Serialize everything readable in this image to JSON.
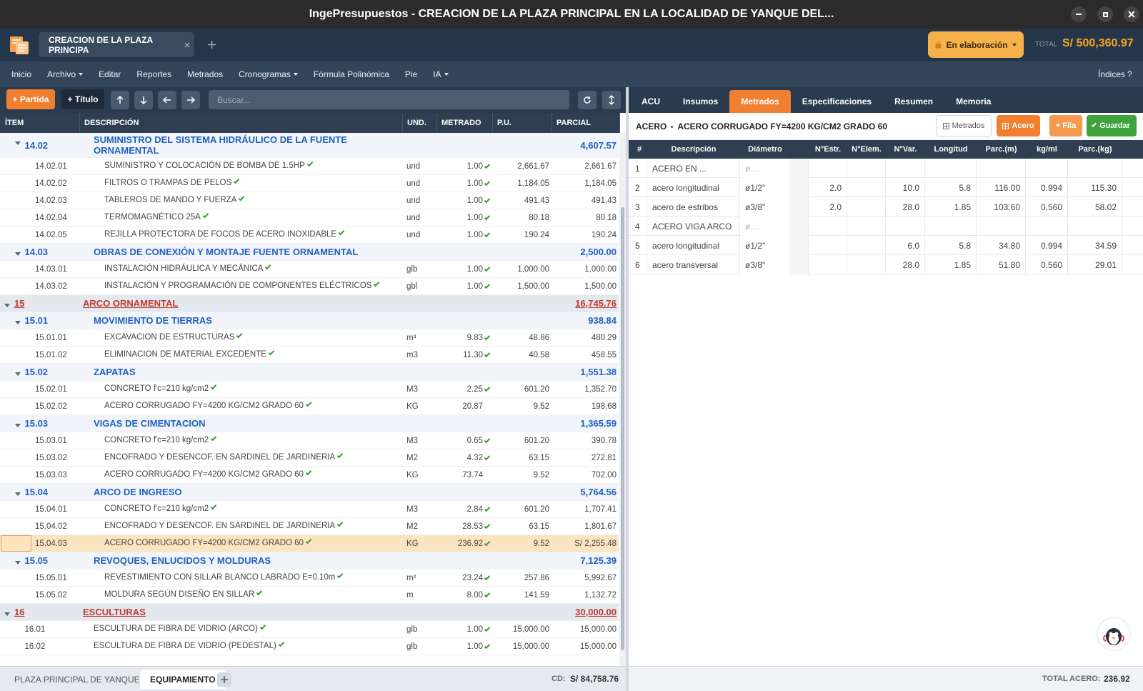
{
  "window_title": "IngePresupuestos  -  CREACION DE LA PLAZA PRINCIPAL EN LA LOCALIDAD DE YANQUE DEL...",
  "project_tab": "CREACION DE LA PLAZA PRINCIPA",
  "status": "En elaboración",
  "total_label": "TOTAL",
  "total_value": "S/ 500,360.97",
  "menu": [
    {
      "label": "Inicio",
      "dropdown": false
    },
    {
      "label": "Archivo",
      "dropdown": true
    },
    {
      "label": "Editar",
      "dropdown": false
    },
    {
      "label": "Reportes",
      "dropdown": false
    },
    {
      "label": "Metrados",
      "dropdown": false
    },
    {
      "label": "Cronogramas",
      "dropdown": true
    },
    {
      "label": "Fórmula Polinómica",
      "dropdown": false
    },
    {
      "label": "Pie",
      "dropdown": false
    },
    {
      "label": "IA",
      "dropdown": true
    }
  ],
  "menu_right": [
    "Índices",
    "?"
  ],
  "toolbar": {
    "add_partida": "+ Partida",
    "add_titulo": "+ Título",
    "search_placeholder": "Buscar..."
  },
  "budget_table": {
    "columns": [
      "ÍTEM",
      "DESCRIPCIÓN",
      "UND.",
      "METRADO",
      "P.U.",
      "PARCIAL"
    ],
    "rows": [
      {
        "item": "14.02",
        "desc": "SUMINISTRO DEL SISTEMA HIDRÁULICO DE LA FUENTE ORNAMENTAL",
        "und": null,
        "metrado": null,
        "pu": null,
        "parcial": "4,607.57"
      },
      {
        "item": "14.02.01",
        "desc": "SUMINISTRO Y COLOCACIÓN DE BOMBA DE 1.5HP",
        "und": "und",
        "metrado": "1.00",
        "metrado_ok": true,
        "pu": "2,661.67",
        "parcial": "2,661.67"
      },
      {
        "item": "14.02.02",
        "desc": "FILTROS O TRAMPAS DE PELOS",
        "und": "und",
        "metrado": "1.00",
        "metrado_ok": true,
        "pu": "1,184.05",
        "parcial": "1,184.05"
      },
      {
        "item": "14.02.03",
        "desc": "TABLEROS DE MANDO Y FUERZA",
        "und": "und",
        "metrado": "1.00",
        "metrado_ok": true,
        "pu": "491.43",
        "parcial": "491.43"
      },
      {
        "item": "14.02.04",
        "desc": "TERMOMAGNÉTICO 25A",
        "und": "und",
        "metrado": "1.00",
        "metrado_ok": true,
        "pu": "80.18",
        "parcial": "80.18"
      },
      {
        "item": "14.02.05",
        "desc": "REJILLA PROTECTORA DE FOCOS DE ACERO INOXIDABLE",
        "und": "und",
        "metrado": "1.00",
        "metrado_ok": true,
        "pu": "190.24",
        "parcial": "190.24"
      },
      {
        "item": "14.03",
        "desc": "OBRAS DE CONEXIÓN Y MONTAJE FUENTE ORNAMENTAL",
        "und": null,
        "metrado": null,
        "pu": null,
        "parcial": "2,500.00"
      },
      {
        "item": "14.03.01",
        "desc": "INSTALACIÓN HIDRÁULICA Y MECÁNICA",
        "und": "glb",
        "metrado": "1.00",
        "metrado_ok": true,
        "pu": "1,000.00",
        "parcial": "1,000.00"
      },
      {
        "item": "14.03.02",
        "desc": "INSTALACIÓN Y PROGRAMACIÓN DE COMPONENTES ELÉCTRICOS",
        "und": "gbl",
        "metrado": "1.00",
        "metrado_ok": true,
        "pu": "1,500.00",
        "parcial": "1,500.00"
      },
      {
        "item": "15",
        "desc": "ARCO ORNAMENTAL",
        "und": null,
        "metrado": null,
        "pu": null,
        "parcial": "16,745.76"
      },
      {
        "item": "15.01",
        "desc": "MOVIMIENTO  DE TIERRAS",
        "und": null,
        "metrado": null,
        "pu": null,
        "parcial": "938.84"
      },
      {
        "item": "15.01.01",
        "desc": "EXCAVACION DE ESTRUCTURAS",
        "und": "m³",
        "metrado": "9.83",
        "metrado_ok": true,
        "pu": "48.86",
        "parcial": "480.29"
      },
      {
        "item": "15.01.02",
        "desc": "ELIMINACION DE MATERIAL EXCEDENTE",
        "und": "m3",
        "metrado": "11.30",
        "metrado_ok": true,
        "pu": "40.58",
        "parcial": "458.55"
      },
      {
        "item": "15.02",
        "desc": "ZAPATAS",
        "und": null,
        "metrado": null,
        "pu": null,
        "parcial": "1,551.38"
      },
      {
        "item": "15.02.01",
        "desc": "CONCRETO f'c=210 kg/cm2",
        "und": "M3",
        "metrado": "2.25",
        "metrado_ok": true,
        "pu": "601.20",
        "parcial": "1,352.70"
      },
      {
        "item": "15.02.02",
        "desc": "ACERO CORRUGADO FY=4200 KG/CM2 GRADO 60",
        "und": "KG",
        "metrado": "20.87",
        "metrado_ok": false,
        "pu": "9.52",
        "parcial": "198.68"
      },
      {
        "item": "15.03",
        "desc": "VIGAS DE CIMENTACION",
        "und": null,
        "metrado": null,
        "pu": null,
        "parcial": "1,365.59"
      },
      {
        "item": "15.03.01",
        "desc": "CONCRETO f'c=210 kg/cm2",
        "und": "M3",
        "metrado": "0.65",
        "metrado_ok": true,
        "pu": "601.20",
        "parcial": "390.78"
      },
      {
        "item": "15.03.02",
        "desc": "ENCOFRADO Y DESENCOF. EN SARDINEL DE JARDINERIA",
        "und": "M2",
        "metrado": "4.32",
        "metrado_ok": true,
        "pu": "63.15",
        "parcial": "272.81"
      },
      {
        "item": "15.03.03",
        "desc": "ACERO CORRUGADO FY=4200 KG/CM2 GRADO 60",
        "und": "KG",
        "metrado": "73.74",
        "metrado_ok": false,
        "pu": "9.52",
        "parcial": "702.00"
      },
      {
        "item": "15.04",
        "desc": "ARCO DE INGRESO",
        "und": null,
        "metrado": null,
        "pu": null,
        "parcial": "5,764.56"
      },
      {
        "item": "15.04.01",
        "desc": "CONCRETO f'c=210 kg/cm2",
        "und": "M3",
        "metrado": "2.84",
        "metrado_ok": true,
        "pu": "601.20",
        "parcial": "1,707.41"
      },
      {
        "item": "15.04.02",
        "desc": "ENCOFRADO Y DESENCOF. EN SARDINEL DE JARDINERIA",
        "und": "M2",
        "metrado": "28.53",
        "metrado_ok": true,
        "pu": "63.15",
        "parcial": "1,801.67"
      },
      {
        "item": "15.04.03",
        "desc": "ACERO CORRUGADO FY=4200 KG/CM2 GRADO 60",
        "und": "KG",
        "metrado": "236.92",
        "metrado_ok": true,
        "pu": "9.52",
        "parcial": "S/ 2,255.48",
        "selected": true
      },
      {
        "item": "15.05",
        "desc": "REVOQUES, ENLUCIDOS Y MOLDURAS",
        "und": null,
        "metrado": null,
        "pu": null,
        "parcial": "7,125.39"
      },
      {
        "item": "15.05.01",
        "desc": "REVESTIMIENTO CON SILLAR BLANCO LABRADO E=0.10m",
        "und": "m²",
        "metrado": "23.24",
        "metrado_ok": true,
        "pu": "257.86",
        "parcial": "5,992.67"
      },
      {
        "item": "15.05.02",
        "desc": "MOLDURA SEGÚN DISEÑO EN SILLAR",
        "und": "m",
        "metrado": "8.00",
        "metrado_ok": true,
        "pu": "141.59",
        "parcial": "1,132.72"
      },
      {
        "item": "16",
        "desc": "ESCULTURAS",
        "und": null,
        "metrado": null,
        "pu": null,
        "parcial": "30,000.00"
      },
      {
        "item": "16.01",
        "desc": "ESCULTURA DE FIBRA DE VIDRIO (ARCO)",
        "und": "glb",
        "metrado": "1.00",
        "metrado_ok": true,
        "pu": "15,000.00",
        "parcial": "15,000.00"
      },
      {
        "item": "16.02",
        "desc": "ESCULTURA DE FIBRA DE VIDRIO (PEDESTAL)",
        "und": "glb",
        "metrado": "1.00",
        "metrado_ok": true,
        "pu": "15,000.00",
        "parcial": "15,000.00"
      }
    ]
  },
  "sheet_tabs": [
    {
      "label": "PLAZA PRINCIPAL DE YANQUE",
      "active": false
    },
    {
      "label": "EQUIPAMIENTO",
      "active": true
    }
  ],
  "cd_label": "CD:",
  "cd_value": "S/ 84,758.76",
  "detail_tabs": [
    {
      "label": "ACU",
      "active": false
    },
    {
      "label": "Insumos",
      "active": false
    },
    {
      "label": "Metrados",
      "active": true
    },
    {
      "label": "Especificaciones",
      "active": false
    },
    {
      "label": "Resumen",
      "active": false
    },
    {
      "label": "Memoria",
      "active": false
    }
  ],
  "detail_header": {
    "category": "ACERO",
    "title": "ACERO CORRUGADO FY=4200 KG/CM2 GRADO 60",
    "buttons": [
      "Metrados",
      "Acero",
      "+ Fila",
      "Guardar"
    ]
  },
  "steel_table": {
    "columns": [
      "#",
      "Descripción",
      "Diámetro",
      "N°Estr.",
      "N°Elem.",
      "N°Var.",
      "Longitud",
      "Parc.(m)",
      "kg/ml",
      "Parc.(kg)"
    ],
    "rows": [
      [
        "1",
        "ACERO EN ...",
        "ø...",
        null,
        null,
        null,
        null,
        null,
        null,
        null
      ],
      [
        "2",
        "acero longitudinal",
        "ø1/2\"",
        "2.0",
        null,
        "10.0",
        "5.8",
        "116.00",
        "0.994",
        "115.30"
      ],
      [
        "3",
        "acero de estribos",
        "ø3/8\"",
        "2.0",
        null,
        "28.0",
        "1.85",
        "103.60",
        "0.560",
        "58.02"
      ],
      [
        "4",
        "ACERO VIGA ARCO",
        "ø...",
        null,
        null,
        null,
        null,
        null,
        null,
        null
      ],
      [
        "5",
        "acero longitudinal",
        "ø1/2\"",
        null,
        null,
        "6.0",
        "5.8",
        "34.80",
        "0.994",
        "34.59"
      ],
      [
        "6",
        "acero transversal",
        "ø3/8\"",
        null,
        null,
        "28.0",
        "1.85",
        "51.80",
        "0.560",
        "29.01"
      ]
    ]
  },
  "total_steel_label": "TOTAL ACERO:",
  "total_steel_value": "236.92"
}
